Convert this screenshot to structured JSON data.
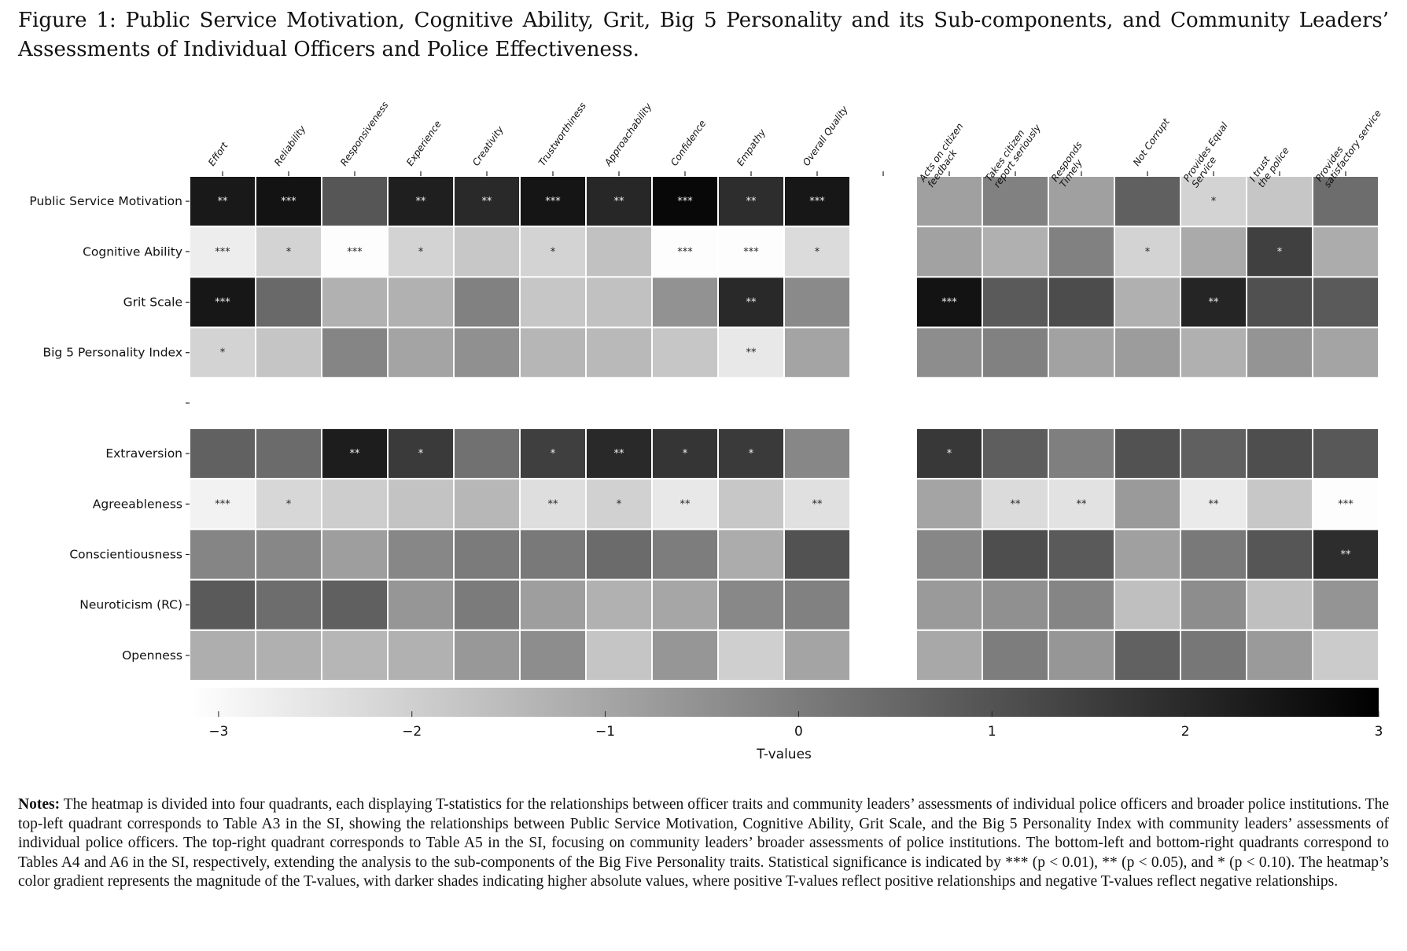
{
  "figure": {
    "title": "Figure 1:  Public Service Motivation, Cognitive Ability, Grit, Big 5 Personality and its Sub-components, and Community Leaders’ Assessments of Individual Officers and Police Effectiveness.",
    "notes_label": "Notes:",
    "notes_text": " The heatmap is divided into four quadrants, each displaying T-statistics for the relationships between officer traits and community leaders’ assessments of individual police officers and broader police institutions. The top-left quadrant corresponds to Table A3 in the SI, showing the relationships between Public Service Motivation, Cognitive Ability, Grit Scale, and the Big 5 Personality Index with community leaders’ assessments of individual police officers. The top-right quadrant corresponds to Table A5 in the SI, focusing on community leaders’ broader assessments of police institutions. The bottom-left and bottom-right quadrants correspond to Tables A4 and A6 in the SI, respectively, extending the analysis to the sub-components of the Big Five Personality traits. Statistical significance is indicated by *** (p < 0.01), ** (p < 0.05), and * (p < 0.10). The heatmap’s color gradient represents the magnitude of the T-values, with darker shades indicating higher absolute values, where positive T-values reflect positive relationships and negative T-values reflect negative relationships."
  },
  "chart_data": {
    "type": "heatmap",
    "colormap": "gray_r",
    "colorbar": {
      "label": "T-values",
      "range": [
        -3.15,
        3
      ],
      "ticks": [
        -3,
        -2,
        -1,
        0,
        1,
        2,
        3
      ],
      "tick_labels": [
        "−3",
        "−2",
        "−1",
        "0",
        "1",
        "2",
        "3"
      ],
      "placement": "bottom"
    },
    "x_labels_left": [
      "Effort",
      "Reliability",
      "Responsiveness",
      "Experience",
      "Creativity",
      "Trustworthiness",
      "Approachability",
      "Confidence",
      "Empathy",
      "Overall Quality"
    ],
    "x_labels_right": [
      "Acts on citizen\nfeedback",
      "Takes citizen\nreport seriously",
      "Responds\nTimely",
      "Not Corrupt",
      "Provides Equal\nService",
      "I trust\nthe police",
      "Provides\nsatisfactory service"
    ],
    "y_labels_top": [
      "Public Service Motivation",
      "Cognitive Ability",
      "Grit Scale",
      "Big 5 Personality Index"
    ],
    "y_labels_bottom": [
      "Extraversion",
      "Agreeableness",
      "Conscientiousness",
      "Neuroticism (RC)",
      "Openness"
    ],
    "values": [
      [
        2.39,
        2.53,
        0.93,
        2.25,
        2.0,
        2.5,
        2.06,
        2.8,
        1.92,
        2.44,
        -0.86,
        -0.11,
        -0.86,
        0.69,
        -2.08,
        -1.78,
        0.36
      ],
      [
        -2.72,
        -2.08,
        -3.1,
        -2.08,
        -1.8,
        -2.08,
        -1.66,
        -3.1,
        -3.1,
        -2.27,
        -0.9,
        -1.24,
        -0.11,
        -2.08,
        -1.09,
        1.45,
        -1.14
      ],
      [
        2.44,
        0.46,
        -1.26,
        -1.26,
        -0.11,
        -1.78,
        -1.66,
        -0.53,
        2.0,
        -0.34,
        2.53,
        0.84,
        1.16,
        -1.24,
        2.1,
        1.07,
        0.84
      ],
      [
        -2.08,
        -1.75,
        -0.2,
        -0.95,
        -0.48,
        -1.38,
        -1.47,
        -1.78,
        -2.6,
        -0.95,
        -0.39,
        -0.11,
        -0.9,
        -0.76,
        -1.24,
        -0.58,
        -0.95
      ],
      [
        0.65,
        0.41,
        2.29,
        1.59,
        0.27,
        1.49,
        2.01,
        1.73,
        1.59,
        -0.25,
        1.64,
        0.74,
        -0.06,
        1.02,
        0.69,
        1.12,
        0.88
      ],
      [
        -2.84,
        -2.18,
        -1.94,
        -1.71,
        -1.42,
        -2.36,
        -2.04,
        -2.6,
        -1.8,
        -2.41,
        -0.95,
        -2.27,
        -2.46,
        -0.72,
        -2.65,
        -1.8,
        -3.1
      ],
      [
        -0.2,
        -0.25,
        -0.81,
        -0.25,
        0.04,
        0.08,
        0.41,
        -0.01,
        -1.14,
        1.02,
        -0.25,
        1.12,
        0.84,
        -0.86,
        0.08,
        0.93,
        1.92
      ],
      [
        0.84,
        0.36,
        0.69,
        -0.62,
        0.04,
        -0.81,
        -1.28,
        -1.0,
        -0.29,
        -0.11,
        -0.72,
        -0.48,
        -0.2,
        -1.61,
        -0.39,
        -1.61,
        -0.58
      ],
      [
        -1.19,
        -1.24,
        -1.38,
        -1.28,
        -0.67,
        -0.39,
        -1.75,
        -0.62,
        -1.99,
        -0.95,
        -1.05,
        -0.01,
        -0.62,
        0.65,
        0.13,
        -0.72,
        -1.89
      ]
    ],
    "significance": [
      [
        "**",
        "***",
        "",
        "**",
        "**",
        "***",
        "**",
        "***",
        "**",
        "***",
        "",
        "",
        "",
        "",
        "*",
        "",
        ""
      ],
      [
        "***",
        "*",
        "***",
        "*",
        "",
        "*",
        "",
        "***",
        "***",
        "*",
        "",
        "",
        "",
        "*",
        "",
        "*",
        ""
      ],
      [
        "***",
        "",
        "",
        "",
        "",
        "",
        "",
        "",
        "**",
        "",
        "***",
        "",
        "",
        "",
        "**",
        "",
        ""
      ],
      [
        "*",
        "",
        "",
        "",
        "",
        "",
        "",
        "",
        "**",
        "",
        "",
        "",
        "",
        "",
        "",
        "",
        ""
      ],
      [
        "",
        "",
        "**",
        "*",
        "",
        "*",
        "**",
        "*",
        "*",
        "",
        "*",
        "",
        "",
        "",
        "",
        "",
        ""
      ],
      [
        "***",
        "*",
        "",
        "",
        "",
        "**",
        "*",
        "**",
        "",
        "**",
        "",
        "**",
        "**",
        "",
        "**",
        "",
        "***"
      ],
      [
        "",
        "",
        "",
        "",
        "",
        "",
        "",
        "",
        "",
        "",
        "",
        "",
        "",
        "",
        "",
        "",
        "**"
      ],
      [
        "",
        "",
        "",
        "",
        "",
        "",
        "",
        "",
        "",
        "",
        "",
        "",
        "",
        "",
        "",
        "",
        ""
      ],
      [
        "",
        "",
        "",
        "",
        "",
        "",
        "",
        "",
        "",
        "",
        "",
        "",
        "",
        "",
        "",
        "",
        ""
      ]
    ]
  }
}
